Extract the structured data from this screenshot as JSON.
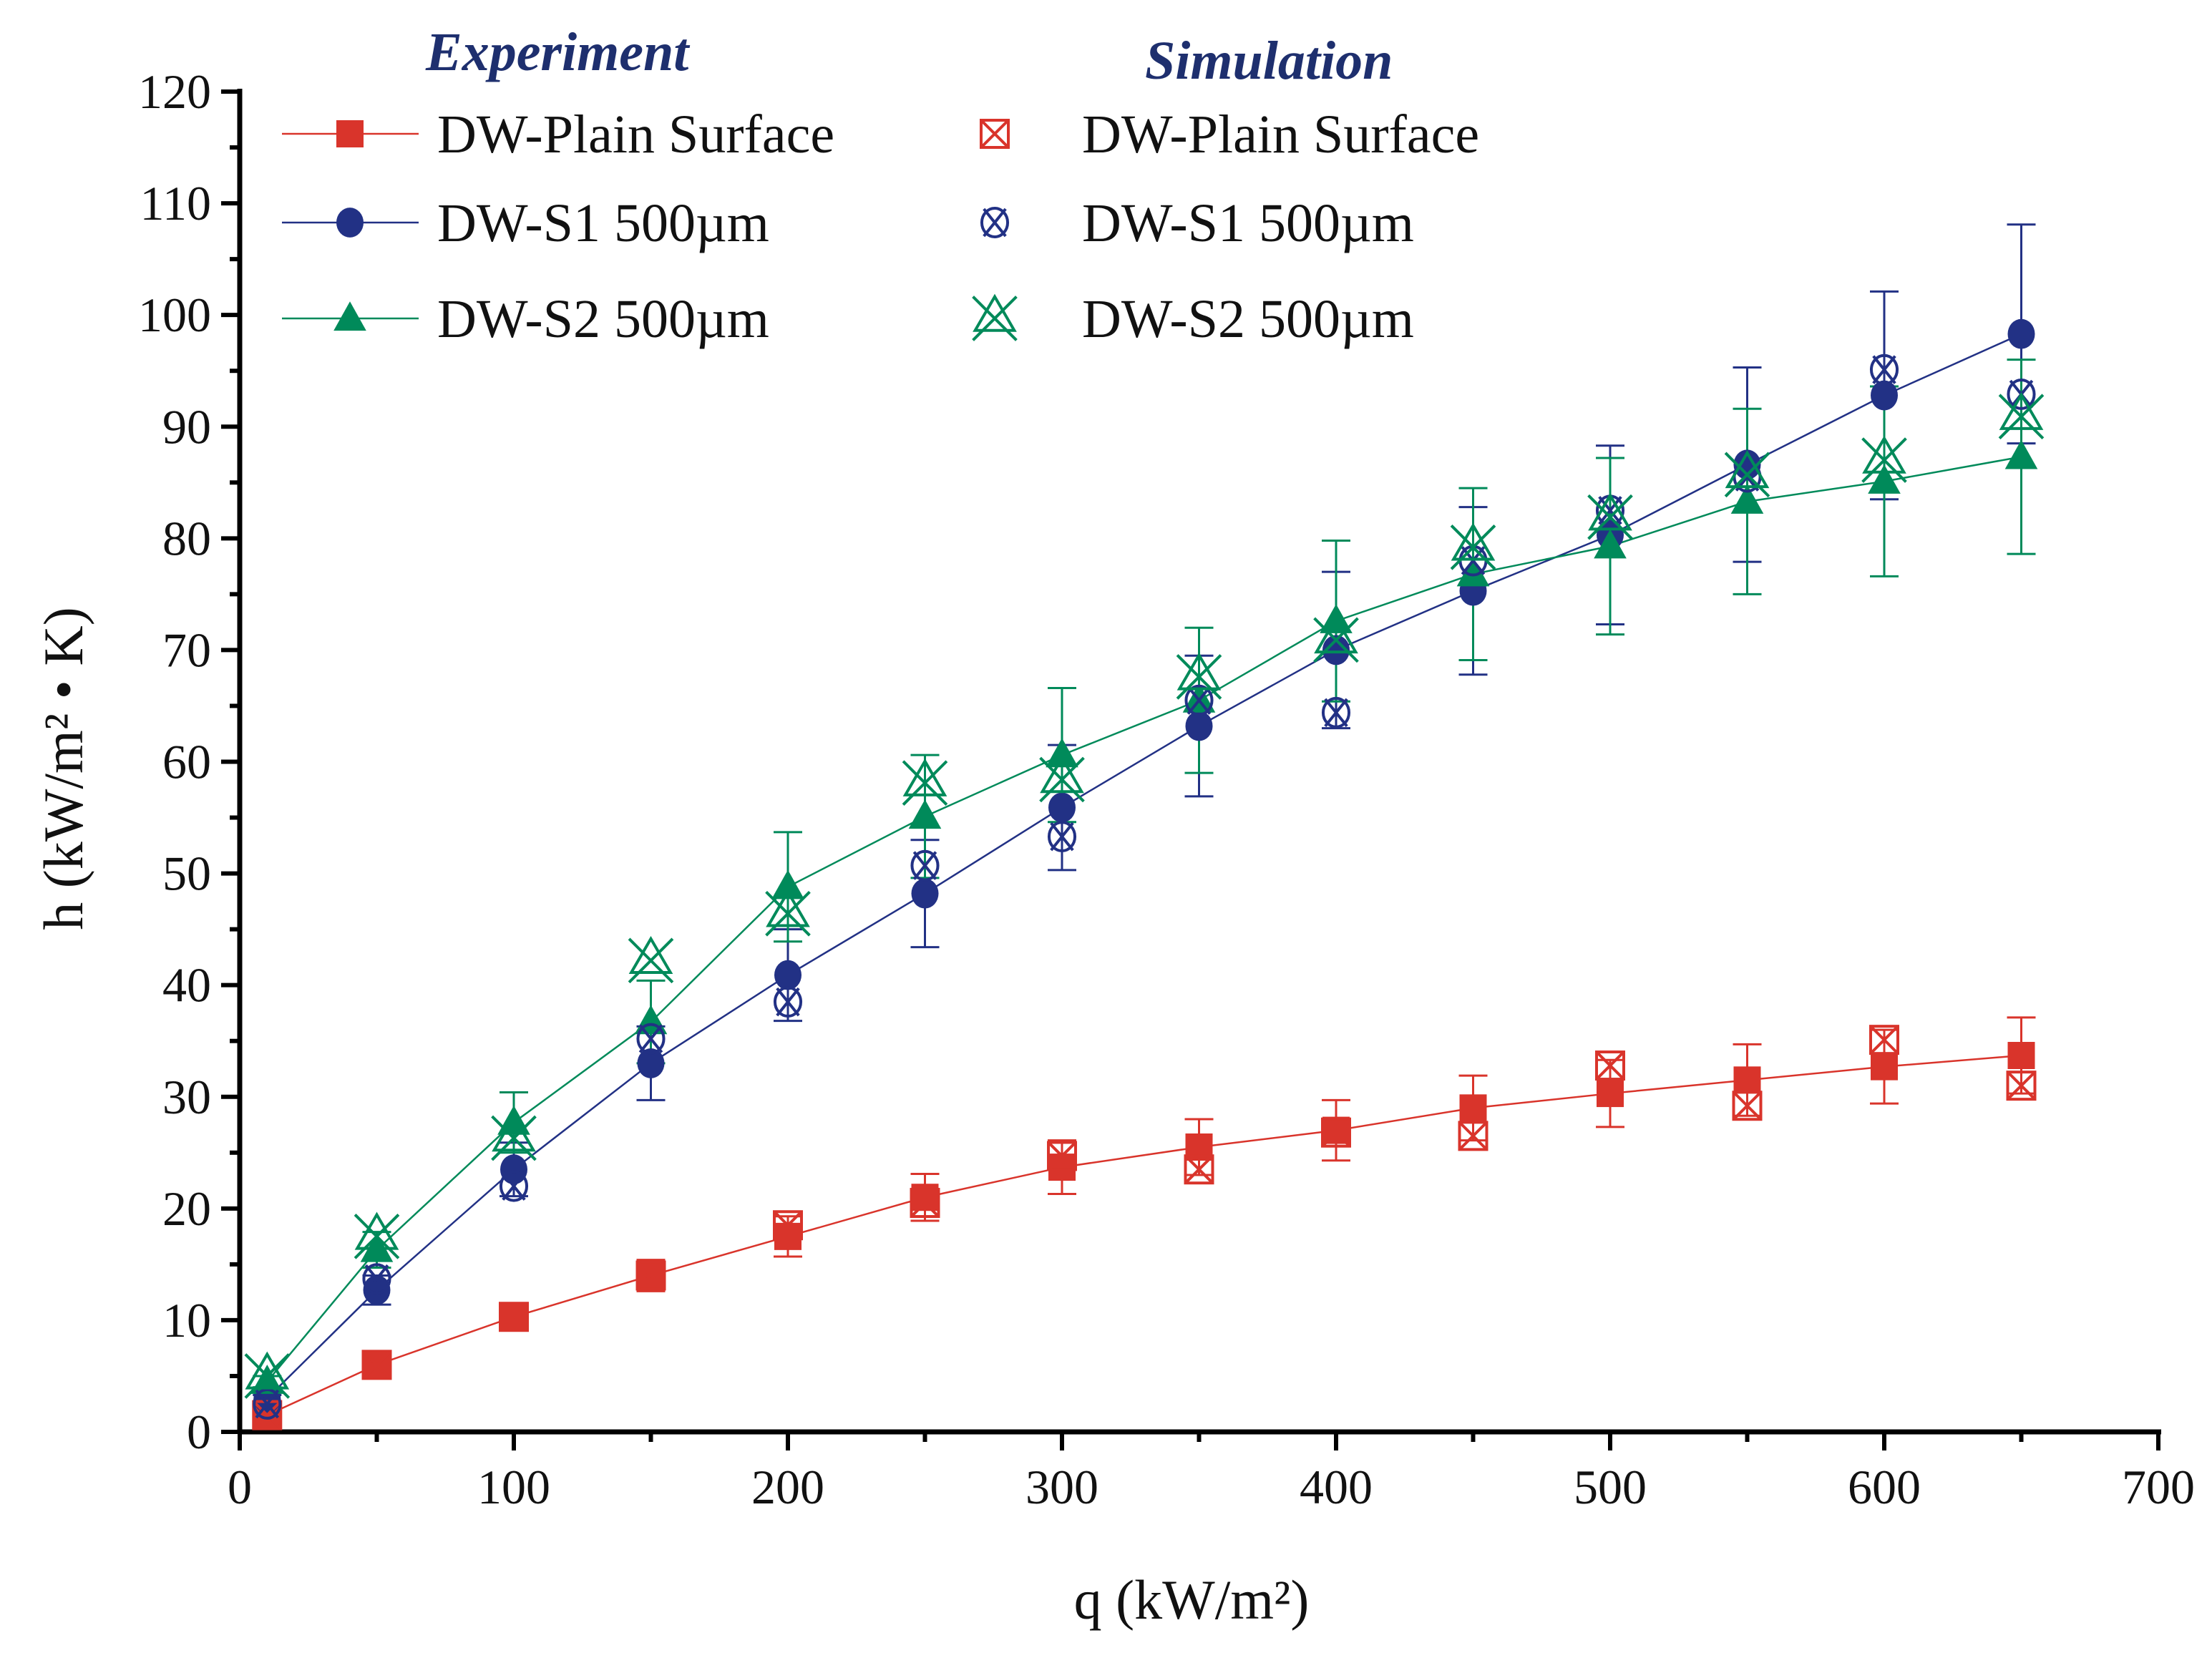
{
  "chart_data": {
    "type": "scatter",
    "xlabel": "q (kW/m²)",
    "ylabel": "h (kW/m² • K)",
    "xlim": [
      0,
      700
    ],
    "ylim": [
      0,
      120
    ],
    "x_ticks": [
      0,
      100,
      200,
      300,
      400,
      500,
      600,
      700
    ],
    "y_ticks": [
      0,
      10,
      20,
      30,
      40,
      50,
      60,
      70,
      80,
      90,
      100,
      110,
      120
    ],
    "grid": false,
    "legend_placement": "top-left",
    "legend_headers": {
      "experiment": "Experiment",
      "simulation": "Simulation"
    },
    "x": [
      10,
      50,
      100,
      150,
      200,
      250,
      300,
      350,
      400,
      450,
      500,
      550,
      600,
      650
    ],
    "series": [
      {
        "name": "DW-Plain Surface",
        "group": "experiment",
        "marker": "filled-square",
        "line": true,
        "color": "#d9342b",
        "values": [
          1.5,
          6.0,
          10.3,
          14.0,
          17.5,
          21.0,
          23.7,
          25.5,
          27.0,
          29.0,
          30.3,
          31.5,
          32.7,
          33.7
        ],
        "error": [
          0.2,
          0.6,
          1.0,
          1.4,
          1.8,
          2.1,
          2.4,
          2.5,
          2.7,
          2.9,
          3.0,
          3.2,
          3.3,
          3.4
        ]
      },
      {
        "name": "DW-S1 500µm",
        "group": "experiment",
        "marker": "filled-circle",
        "line": true,
        "color": "#223185",
        "values": [
          3.0,
          12.7,
          23.5,
          33.0,
          40.9,
          48.2,
          55.9,
          63.2,
          70.0,
          75.3,
          80.3,
          86.6,
          92.8,
          98.3
        ],
        "error": [
          0.3,
          1.3,
          2.4,
          3.3,
          4.1,
          4.8,
          5.6,
          6.3,
          7.0,
          7.5,
          8.0,
          8.7,
          9.3,
          9.8
        ]
      },
      {
        "name": "DW-S2 500µm",
        "group": "experiment",
        "marker": "filled-triangle",
        "line": true,
        "color": "#008a5a",
        "values": [
          4.5,
          16.3,
          27.7,
          36.7,
          48.8,
          55.1,
          60.6,
          65.5,
          72.6,
          76.8,
          79.3,
          83.3,
          85.1,
          87.3
        ],
        "error": [
          0.5,
          1.6,
          2.7,
          3.7,
          4.9,
          5.5,
          6.0,
          6.5,
          7.2,
          7.7,
          7.9,
          8.3,
          8.5,
          8.7
        ]
      },
      {
        "name": "DW-Plain Surface",
        "group": "simulation",
        "marker": "crossed-square",
        "line": false,
        "color": "#d9342b",
        "values": [
          1.5,
          6.0,
          10.3,
          14.0,
          18.5,
          20.5,
          24.7,
          23.5,
          26.8,
          26.5,
          32.8,
          29.2,
          35.1,
          31.0
        ]
      },
      {
        "name": "DW-S1 500µm",
        "group": "simulation",
        "marker": "crossed-circle",
        "line": false,
        "color": "#223185",
        "values": [
          2.5,
          13.7,
          22.0,
          35.2,
          38.5,
          50.7,
          53.3,
          65.5,
          64.4,
          78.0,
          82.5,
          85.5,
          95.1,
          92.9
        ]
      },
      {
        "name": "DW-S2 500µm",
        "group": "simulation",
        "marker": "star-of-david-x",
        "line": false,
        "color": "#008a5a",
        "values": [
          5.0,
          17.5,
          26.3,
          42.2,
          46.4,
          58.1,
          58.4,
          67.6,
          70.9,
          79.2,
          81.9,
          85.7,
          87.0,
          90.9
        ]
      }
    ]
  }
}
